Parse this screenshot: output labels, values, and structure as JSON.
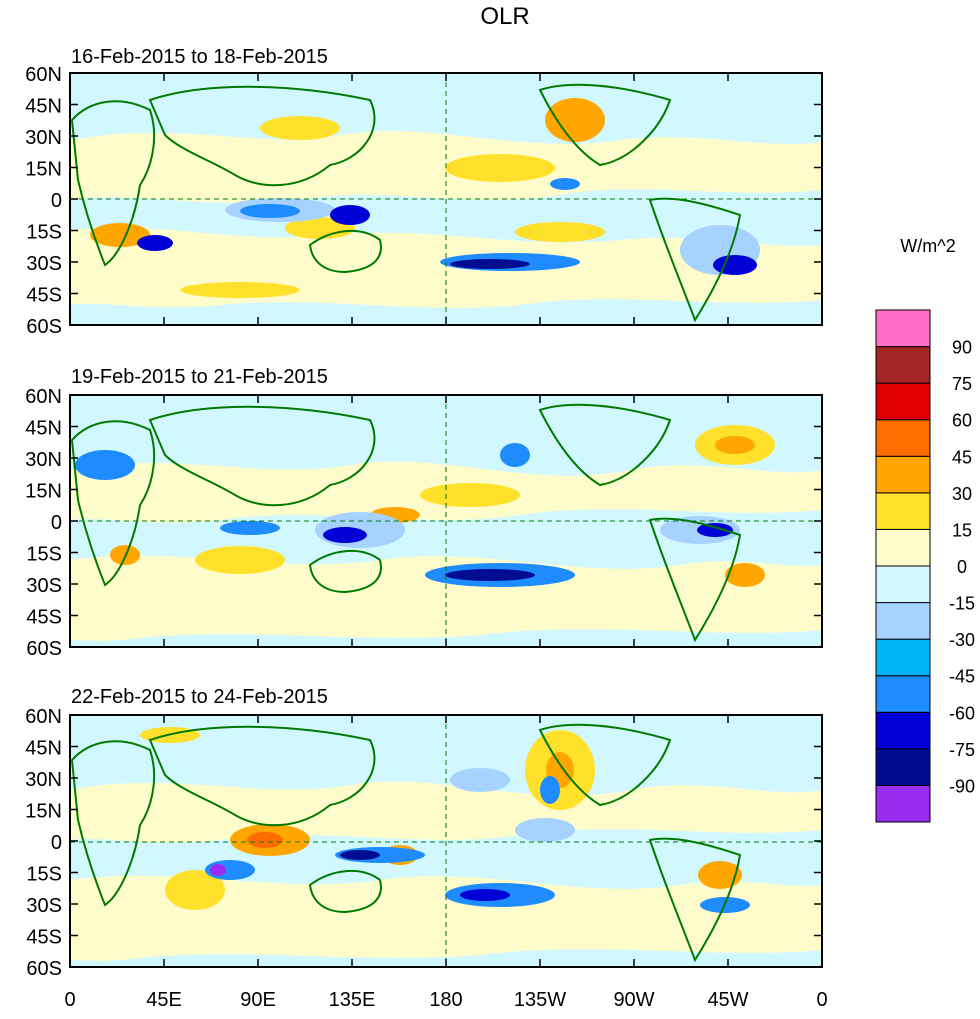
{
  "title": "OLR",
  "units_label": "W/m^2",
  "panels": [
    {
      "id": "p1",
      "date_range": "16-Feb-2015 to 18-Feb-2015"
    },
    {
      "id": "p2",
      "date_range": "19-Feb-2015 to 21-Feb-2015"
    },
    {
      "id": "p3",
      "date_range": "22-Feb-2015 to 24-Feb-2015"
    }
  ],
  "lat_labels": [
    "60N",
    "45N",
    "30N",
    "15N",
    "0",
    "15S",
    "30S",
    "45S",
    "60S"
  ],
  "lon_labels": [
    "0",
    "45E",
    "90E",
    "135E",
    "180",
    "135W",
    "90W",
    "45W",
    "0"
  ],
  "colorbar": {
    "colors": [
      "#9a2bf0",
      "#000c91",
      "#0000d6",
      "#1e8cff",
      "#00b5f5",
      "#a6d2ff",
      "#d2f8ff",
      "#fffccb",
      "#ffe02a",
      "#ffa600",
      "#ff6c00",
      "#e00000",
      "#a52424",
      "#ff6ec7"
    ],
    "labels": [
      "-90",
      "-75",
      "-60",
      "-45",
      "-30",
      "-15",
      "0",
      "15",
      "30",
      "45",
      "60",
      "75",
      "90"
    ]
  }
}
